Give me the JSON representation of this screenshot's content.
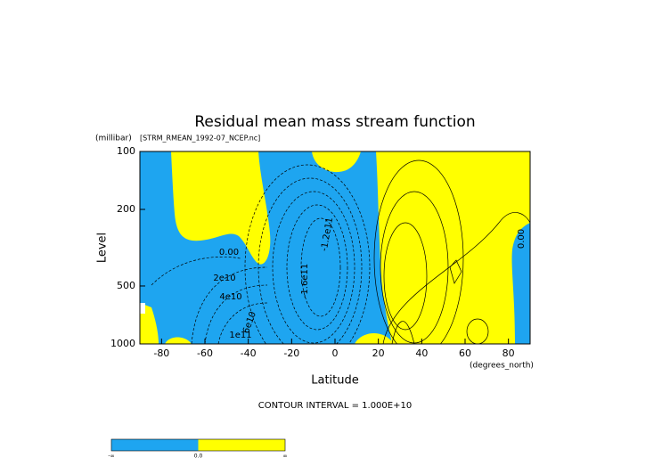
{
  "chart_data": {
    "type": "contour",
    "title": "Residual mean mass stream function",
    "subtitle": "[STRM_RMEAN_1992-07_NCEP.nc]",
    "y_unit": "(millibar)",
    "x_unit": "(degrees_north)",
    "xlabel": "Latitude",
    "ylabel": "Level",
    "xlim": [
      -90,
      90
    ],
    "xticks": [
      -80,
      -60,
      -40,
      -20,
      0,
      20,
      40,
      60,
      80
    ],
    "ylim": [
      1000,
      100
    ],
    "yticks": [
      100,
      200,
      500,
      1000
    ],
    "y_log": true,
    "contour_interval_label": "CONTOUR INTERVAL = 1.000E+10",
    "contour_labels": [
      "0.00",
      "2e10",
      "4e10",
      "6e10",
      "1e11",
      "-1.2e11",
      "-1.6e11",
      "0.00"
    ],
    "colorbar": {
      "colors": [
        "#1ea5f0",
        "#ffff00"
      ],
      "labels": [
        "-∞",
        "0.0",
        "∞"
      ]
    }
  }
}
